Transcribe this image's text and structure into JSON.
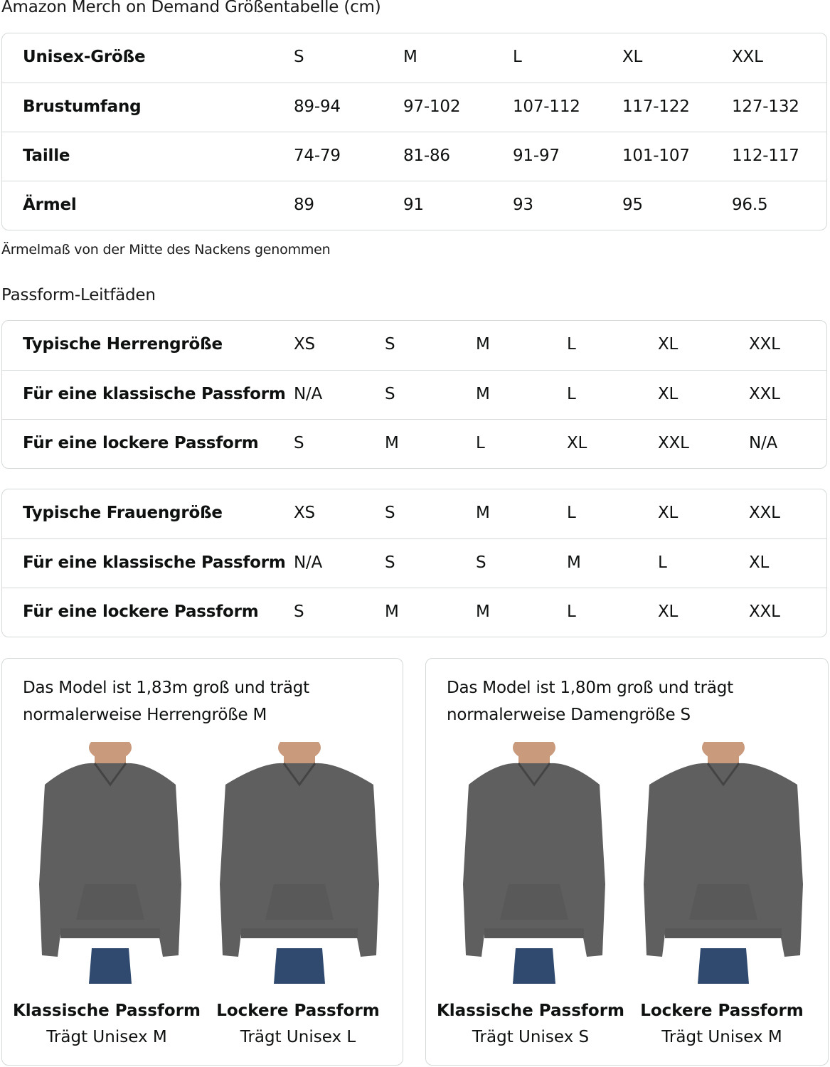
{
  "title": "Amazon Merch on Demand Größentabelle (cm)",
  "unisex_table": {
    "rows": [
      {
        "label": "Unisex-Größe",
        "values": [
          "S",
          "M",
          "L",
          "XL",
          "XXL"
        ]
      },
      {
        "label": "Brustumfang",
        "values": [
          "89-94",
          "97-102",
          "107-112",
          "117-122",
          "127-132"
        ]
      },
      {
        "label": "Taille",
        "values": [
          "74-79",
          "81-86",
          "91-97",
          "101-107",
          "112-117"
        ]
      },
      {
        "label": "Ärmel",
        "values": [
          "89",
          "91",
          "93",
          "95",
          "96.5"
        ]
      }
    ]
  },
  "sleeve_note": "Ärmelmaß von der Mitte des Nackens genommen",
  "fit_heading": "Passform-Leitfäden",
  "men_table": {
    "rows": [
      {
        "label": "Typische Herrengröße",
        "values": [
          "XS",
          "S",
          "M",
          "L",
          "XL",
          "XXL"
        ]
      },
      {
        "label": "Für eine klassische Passform",
        "values": [
          "N/A",
          "S",
          "M",
          "L",
          "XL",
          "XXL"
        ]
      },
      {
        "label": "Für eine lockere Passform",
        "values": [
          "S",
          "M",
          "L",
          "XL",
          "XXL",
          "N/A"
        ]
      }
    ]
  },
  "women_table": {
    "rows": [
      {
        "label": "Typische Frauengröße",
        "values": [
          "XS",
          "S",
          "M",
          "L",
          "XL",
          "XXL"
        ]
      },
      {
        "label": "Für eine klassische Passform",
        "values": [
          "N/A",
          "S",
          "S",
          "M",
          "L",
          "XL"
        ]
      },
      {
        "label": "Für eine lockere Passform",
        "values": [
          "S",
          "M",
          "M",
          "L",
          "XL",
          "XXL"
        ]
      }
    ]
  },
  "cards": [
    {
      "text": "Das Model ist 1,83m groß und trägt normalerweise Herrengröße M",
      "figures": [
        {
          "fit": "Klassische Passform",
          "wears": "Trägt Unisex M"
        },
        {
          "fit": "Lockere Passform",
          "wears": "Trägt Unisex L"
        }
      ]
    },
    {
      "text": "Das Model ist 1,80m groß und trägt normalerweise Damengröße S",
      "figures": [
        {
          "fit": "Klassische Passform",
          "wears": "Trägt Unisex S"
        },
        {
          "fit": "Lockere Passform",
          "wears": "Trägt Unisex M"
        }
      ]
    }
  ],
  "colors": {
    "border": "#d5d9d9",
    "hoodie": "#5f5f5f",
    "jeans": "#2f4a6e",
    "skin": "#c99a7c"
  }
}
